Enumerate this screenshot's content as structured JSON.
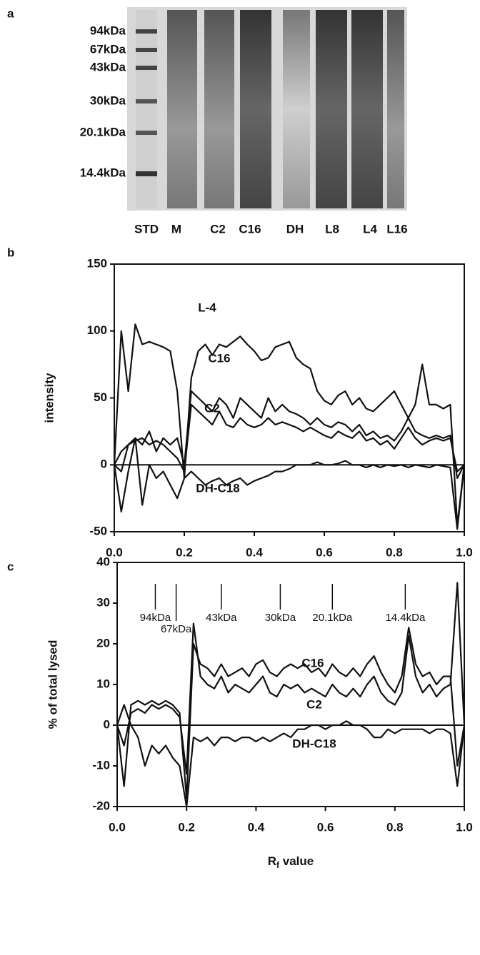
{
  "gel": {
    "panel": "a",
    "markers": [
      "94kDa",
      "67kDa",
      "43kDa",
      "30kDa",
      "20.1kDa",
      "14.4kDa"
    ],
    "lanes": [
      "STD",
      "M",
      "C2",
      "C16",
      "DH",
      "L8",
      "L4",
      "L16"
    ]
  },
  "chart_data": [
    {
      "type": "line",
      "panel": "b",
      "ylabel": "intensity",
      "x": [
        0,
        0.02,
        0.04,
        0.06,
        0.08,
        0.1,
        0.12,
        0.14,
        0.16,
        0.18,
        0.2,
        0.22,
        0.24,
        0.26,
        0.28,
        0.3,
        0.32,
        0.34,
        0.36,
        0.38,
        0.4,
        0.42,
        0.44,
        0.46,
        0.48,
        0.5,
        0.52,
        0.54,
        0.56,
        0.58,
        0.6,
        0.62,
        0.64,
        0.66,
        0.68,
        0.7,
        0.72,
        0.74,
        0.76,
        0.78,
        0.8,
        0.82,
        0.84,
        0.86,
        0.88,
        0.9,
        0.92,
        0.94,
        0.96,
        0.98,
        1.0
      ],
      "series": [
        {
          "name": "L-4",
          "color": "#111111",
          "values": [
            0,
            100,
            55,
            105,
            90,
            92,
            90,
            88,
            85,
            55,
            -10,
            65,
            85,
            90,
            82,
            90,
            88,
            92,
            96,
            90,
            85,
            78,
            80,
            88,
            90,
            92,
            80,
            75,
            72,
            55,
            48,
            45,
            52,
            55,
            45,
            50,
            42,
            40,
            45,
            50,
            55,
            45,
            35,
            45,
            75,
            45,
            45,
            42,
            45,
            -45,
            0
          ]
        },
        {
          "name": "C16",
          "color": "#111111",
          "values": [
            0,
            -5,
            15,
            20,
            15,
            25,
            10,
            20,
            15,
            20,
            0,
            55,
            50,
            45,
            40,
            50,
            45,
            35,
            50,
            45,
            40,
            35,
            50,
            40,
            45,
            40,
            38,
            35,
            30,
            35,
            30,
            28,
            32,
            30,
            25,
            30,
            22,
            25,
            20,
            22,
            18,
            25,
            35,
            25,
            22,
            20,
            22,
            20,
            22,
            -10,
            0
          ]
        },
        {
          "name": "C2",
          "color": "#111111",
          "values": [
            0,
            10,
            15,
            18,
            20,
            15,
            18,
            15,
            10,
            5,
            -5,
            45,
            40,
            35,
            30,
            40,
            30,
            28,
            35,
            30,
            28,
            30,
            35,
            30,
            32,
            30,
            28,
            25,
            28,
            25,
            22,
            20,
            25,
            22,
            20,
            25,
            18,
            20,
            15,
            18,
            12,
            20,
            28,
            20,
            15,
            18,
            20,
            18,
            20,
            -5,
            0
          ]
        },
        {
          "name": "DH-C18",
          "color": "#111111",
          "values": [
            0,
            -35,
            -5,
            20,
            -30,
            0,
            -10,
            -5,
            -15,
            -25,
            -10,
            -5,
            -10,
            -15,
            -12,
            -10,
            -15,
            -12,
            -10,
            -15,
            -12,
            -10,
            -8,
            -5,
            -5,
            -3,
            0,
            0,
            0,
            2,
            0,
            0,
            1,
            3,
            0,
            0,
            -2,
            0,
            -2,
            0,
            -1,
            0,
            -2,
            0,
            -1,
            -2,
            0,
            -1,
            -2,
            -48,
            0
          ]
        }
      ],
      "xlim": [
        0,
        1
      ],
      "xticks": [
        {
          "value": 0,
          "label": "0.0"
        },
        0.2,
        0.4,
        0.6,
        0.8,
        {
          "value": 1,
          "label": "1.0"
        }
      ],
      "ylim": [
        -50,
        150
      ],
      "yticks": [
        -50,
        0,
        50,
        100,
        150
      ],
      "zero_line": true
    },
    {
      "type": "line",
      "panel": "c",
      "ylabel": "% of total lysed",
      "xlabel": {
        "main": "R",
        "sub": "f",
        "rest": " value"
      },
      "x": [
        0,
        0.02,
        0.04,
        0.06,
        0.08,
        0.1,
        0.12,
        0.14,
        0.16,
        0.18,
        0.2,
        0.22,
        0.24,
        0.26,
        0.28,
        0.3,
        0.32,
        0.34,
        0.36,
        0.38,
        0.4,
        0.42,
        0.44,
        0.46,
        0.48,
        0.5,
        0.52,
        0.54,
        0.56,
        0.58,
        0.6,
        0.62,
        0.64,
        0.66,
        0.68,
        0.7,
        0.72,
        0.74,
        0.76,
        0.78,
        0.8,
        0.82,
        0.84,
        0.86,
        0.88,
        0.9,
        0.92,
        0.94,
        0.96,
        0.98,
        1.0
      ],
      "series": [
        {
          "name": "C16",
          "color": "#111111",
          "values": [
            0,
            -15,
            5,
            6,
            5,
            6,
            5,
            6,
            5,
            3,
            -18,
            20,
            15,
            14,
            12,
            15,
            12,
            13,
            14,
            12,
            15,
            16,
            13,
            12,
            14,
            15,
            14,
            15,
            13,
            14,
            12,
            15,
            13,
            12,
            14,
            12,
            15,
            17,
            13,
            10,
            8,
            12,
            24,
            15,
            12,
            13,
            10,
            12,
            12,
            -10,
            0
          ]
        },
        {
          "name": "C2",
          "color": "#111111",
          "values": [
            0,
            -5,
            3,
            4,
            3,
            5,
            4,
            5,
            4,
            2,
            -12,
            25,
            12,
            10,
            9,
            12,
            8,
            10,
            9,
            8,
            10,
            12,
            8,
            7,
            10,
            9,
            10,
            8,
            9,
            8,
            7,
            10,
            8,
            7,
            9,
            7,
            10,
            12,
            8,
            6,
            5,
            8,
            22,
            12,
            8,
            10,
            7,
            9,
            10,
            35,
            0
          ]
        },
        {
          "name": "DH-C18",
          "color": "#111111",
          "values": [
            0,
            5,
            0,
            -3,
            -10,
            -5,
            -7,
            -5,
            -8,
            -10,
            -20,
            -3,
            -4,
            -3,
            -5,
            -3,
            -3,
            -4,
            -3,
            -3,
            -4,
            -3,
            -4,
            -3,
            -2,
            -3,
            -1,
            -1,
            0,
            0,
            -1,
            0,
            0,
            1,
            0,
            0,
            -1,
            -3,
            -3,
            -1,
            -2,
            -1,
            -1,
            -1,
            -1,
            -2,
            -1,
            -1,
            -2,
            -15,
            0
          ]
        }
      ],
      "markers": [
        {
          "label": "94kDa",
          "x": 0.11
        },
        {
          "label": "67kDa",
          "x": 0.17
        },
        {
          "label": "43kDa",
          "x": 0.3
        },
        {
          "label": "30kDa",
          "x": 0.47
        },
        {
          "label": "20.1kDa",
          "x": 0.62
        },
        {
          "label": "14.4kDa",
          "x": 0.83
        }
      ],
      "xlim": [
        0,
        1
      ],
      "xticks": [
        {
          "value": 0,
          "label": "0.0"
        },
        0.2,
        0.4,
        0.6,
        0.8,
        {
          "value": 1,
          "label": "1.0"
        }
      ],
      "ylim": [
        -20,
        40
      ],
      "yticks": [
        -20,
        -10,
        0,
        10,
        20,
        30,
        40
      ],
      "zero_line": true
    }
  ]
}
